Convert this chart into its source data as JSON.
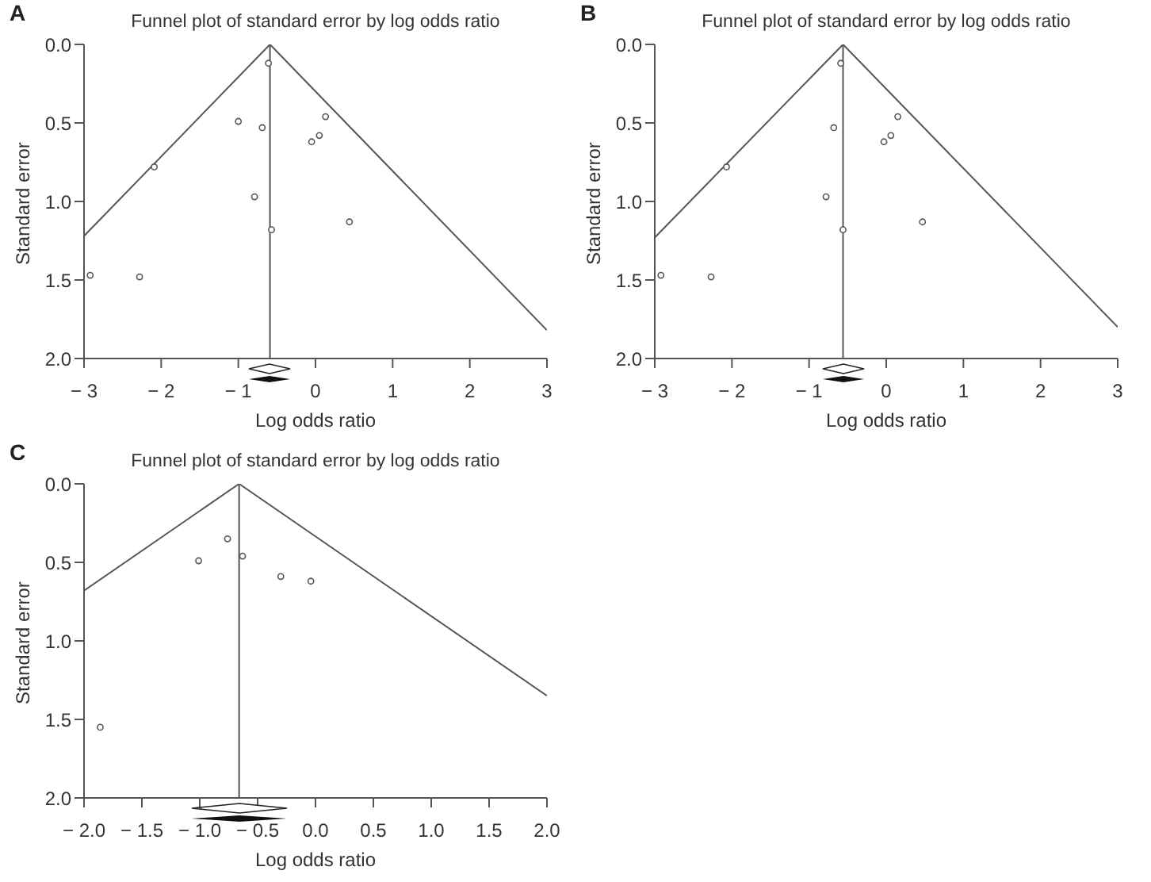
{
  "chart_data": [
    {
      "type": "scatter",
      "title": "Funnel plot of standard error by log odds ratio",
      "xlabel": "Log odds ratio",
      "ylabel": "Standard error",
      "annotations": [
        "A"
      ],
      "xlim": [
        -3,
        3
      ],
      "xticks": [
        {
          "value": -3,
          "label": "− 3"
        },
        {
          "value": -2,
          "label": "− 2"
        },
        {
          "value": -1,
          "label": "− 1"
        },
        0,
        1,
        2,
        3
      ],
      "ylim": [
        2.0,
        0.0
      ],
      "yticks": [
        {
          "value": 0,
          "label": "0.0"
        },
        {
          "value": 0.5,
          "label": "0.5"
        },
        {
          "value": 1,
          "label": "1.0"
        },
        {
          "value": 1.5,
          "label": "1.5"
        },
        {
          "value": 2,
          "label": "2.0"
        }
      ],
      "ref_lines": [
        {
          "axis": "x",
          "value": -0.59,
          "color": "#555555"
        }
      ],
      "grid": false,
      "legend": false,
      "series": [
        {
          "type": "line",
          "x": [
            -3,
            -0.59,
            3
          ],
          "values": [
            1.22,
            0,
            1.82
          ],
          "color": "#555555"
        },
        {
          "type": "scatter",
          "marker": "circle",
          "x": [
            -0.61,
            -1.0,
            -0.69,
            0.13,
            0.05,
            -0.05,
            -2.09,
            -0.79,
            -0.57,
            0.44,
            -2.92,
            -2.28
          ],
          "values": [
            0.12,
            0.49,
            0.53,
            0.46,
            0.58,
            0.62,
            0.78,
            0.97,
            1.18,
            1.13,
            1.47,
            1.48
          ],
          "color": "#555555"
        }
      ]
    },
    {
      "type": "scatter",
      "title": "Funnel plot of standard error by log odds ratio",
      "xlabel": "Log odds ratio",
      "ylabel": "Standard error",
      "annotations": [
        "B"
      ],
      "xlim": [
        -3,
        3
      ],
      "xticks": [
        {
          "value": -3,
          "label": "− 3"
        },
        {
          "value": -2,
          "label": "− 2"
        },
        {
          "value": -1,
          "label": "− 1"
        },
        0,
        1,
        2,
        3
      ],
      "ylim": [
        2.0,
        0.0
      ],
      "yticks": [
        {
          "value": 0,
          "label": "0.0"
        },
        {
          "value": 0.5,
          "label": "0.5"
        },
        {
          "value": 1,
          "label": "1.0"
        },
        {
          "value": 1.5,
          "label": "1.5"
        },
        {
          "value": 2,
          "label": "2.0"
        }
      ],
      "ref_lines": [
        {
          "axis": "x",
          "value": -0.56,
          "color": "#555555"
        }
      ],
      "grid": false,
      "legend": false,
      "series": [
        {
          "type": "line",
          "x": [
            -3,
            -0.56,
            3
          ],
          "values": [
            1.23,
            0,
            1.8
          ],
          "color": "#555555"
        },
        {
          "type": "scatter",
          "marker": "circle",
          "x": [
            -0.59,
            -0.68,
            0.15,
            0.06,
            -0.03,
            -2.07,
            -0.78,
            -0.56,
            0.47,
            -2.92,
            -2.27
          ],
          "values": [
            0.12,
            0.53,
            0.46,
            0.58,
            0.62,
            0.78,
            0.97,
            1.18,
            1.13,
            1.47,
            1.48
          ],
          "color": "#555555"
        }
      ]
    },
    {
      "type": "scatter",
      "title": "Funnel plot of standard error by log odds ratio",
      "xlabel": "Log odds ratio",
      "ylabel": "Standard error",
      "annotations": [
        "C"
      ],
      "xlim": [
        -2,
        2
      ],
      "xticks": [
        {
          "value": -2,
          "label": "− 2.0"
        },
        {
          "value": -1.5,
          "label": "− 1.5"
        },
        {
          "value": -1,
          "label": "− 1.0"
        },
        {
          "value": -0.5,
          "label": "− 0.5"
        },
        {
          "value": 0,
          "label": "0.0"
        },
        0.5,
        {
          "value": 1,
          "label": "1.0"
        },
        1.5,
        {
          "value": 2,
          "label": "2.0"
        }
      ],
      "ylim": [
        2.0,
        0.0
      ],
      "yticks": [
        {
          "value": 0,
          "label": "0.0"
        },
        {
          "value": 0.5,
          "label": "0.5"
        },
        {
          "value": 1,
          "label": "1.0"
        },
        {
          "value": 1.5,
          "label": "1.5"
        },
        {
          "value": 2,
          "label": "2.0"
        }
      ],
      "ref_lines": [
        {
          "axis": "x",
          "value": -0.66,
          "color": "#555555"
        }
      ],
      "grid": false,
      "legend": false,
      "series": [
        {
          "type": "line",
          "x": [
            -2,
            -0.66,
            2
          ],
          "values": [
            0.68,
            0,
            1.35
          ],
          "color": "#555555"
        },
        {
          "type": "scatter",
          "marker": "circle",
          "x": [
            -0.76,
            -1.01,
            -0.63,
            -0.3,
            -0.04,
            -1.86
          ],
          "values": [
            0.35,
            0.49,
            0.46,
            0.59,
            0.62,
            1.55
          ],
          "color": "#555555"
        }
      ]
    }
  ]
}
